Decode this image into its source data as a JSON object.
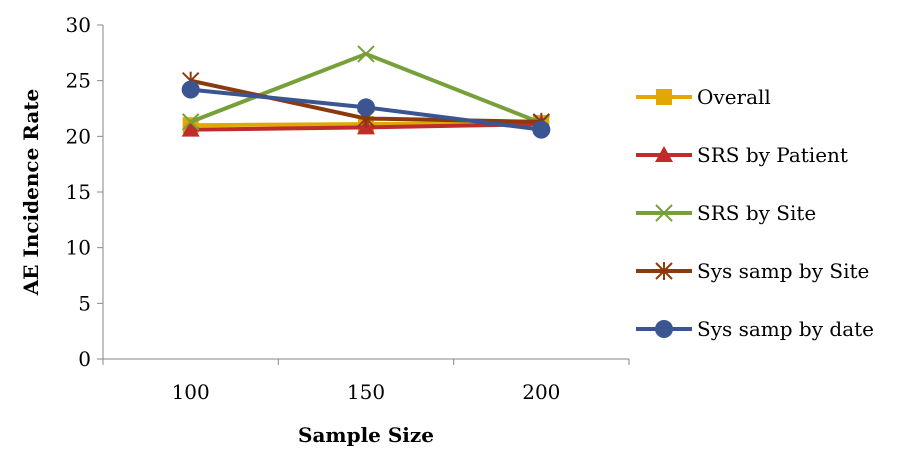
{
  "chart_data": {
    "type": "line",
    "title": "",
    "xlabel": "Sample Size",
    "ylabel": "AE Incidence Rate",
    "categories": [
      "100",
      "150",
      "200"
    ],
    "ylim": [
      0,
      30
    ],
    "yticks": [
      "0",
      "5",
      "10",
      "15",
      "20",
      "25",
      "30"
    ],
    "grid": false,
    "legend_position": "right",
    "series": [
      {
        "name": "Overall",
        "values": [
          21.0,
          21.1,
          21.2
        ],
        "color": "#E0A800",
        "marker": "square"
      },
      {
        "name": "SRS by Patient",
        "values": [
          20.6,
          20.8,
          21.1
        ],
        "color": "#BE2D2A",
        "marker": "triangle"
      },
      {
        "name": "SRS by Site",
        "values": [
          21.3,
          27.4,
          21.2
        ],
        "color": "#77A03A",
        "marker": "x"
      },
      {
        "name": "Sys samp by Site",
        "values": [
          25.0,
          21.6,
          21.3
        ],
        "color": "#8B3A0E",
        "marker": "star"
      },
      {
        "name": "Sys samp by date",
        "values": [
          24.2,
          22.6,
          20.6
        ],
        "color": "#3A5591",
        "marker": "circle"
      }
    ]
  }
}
